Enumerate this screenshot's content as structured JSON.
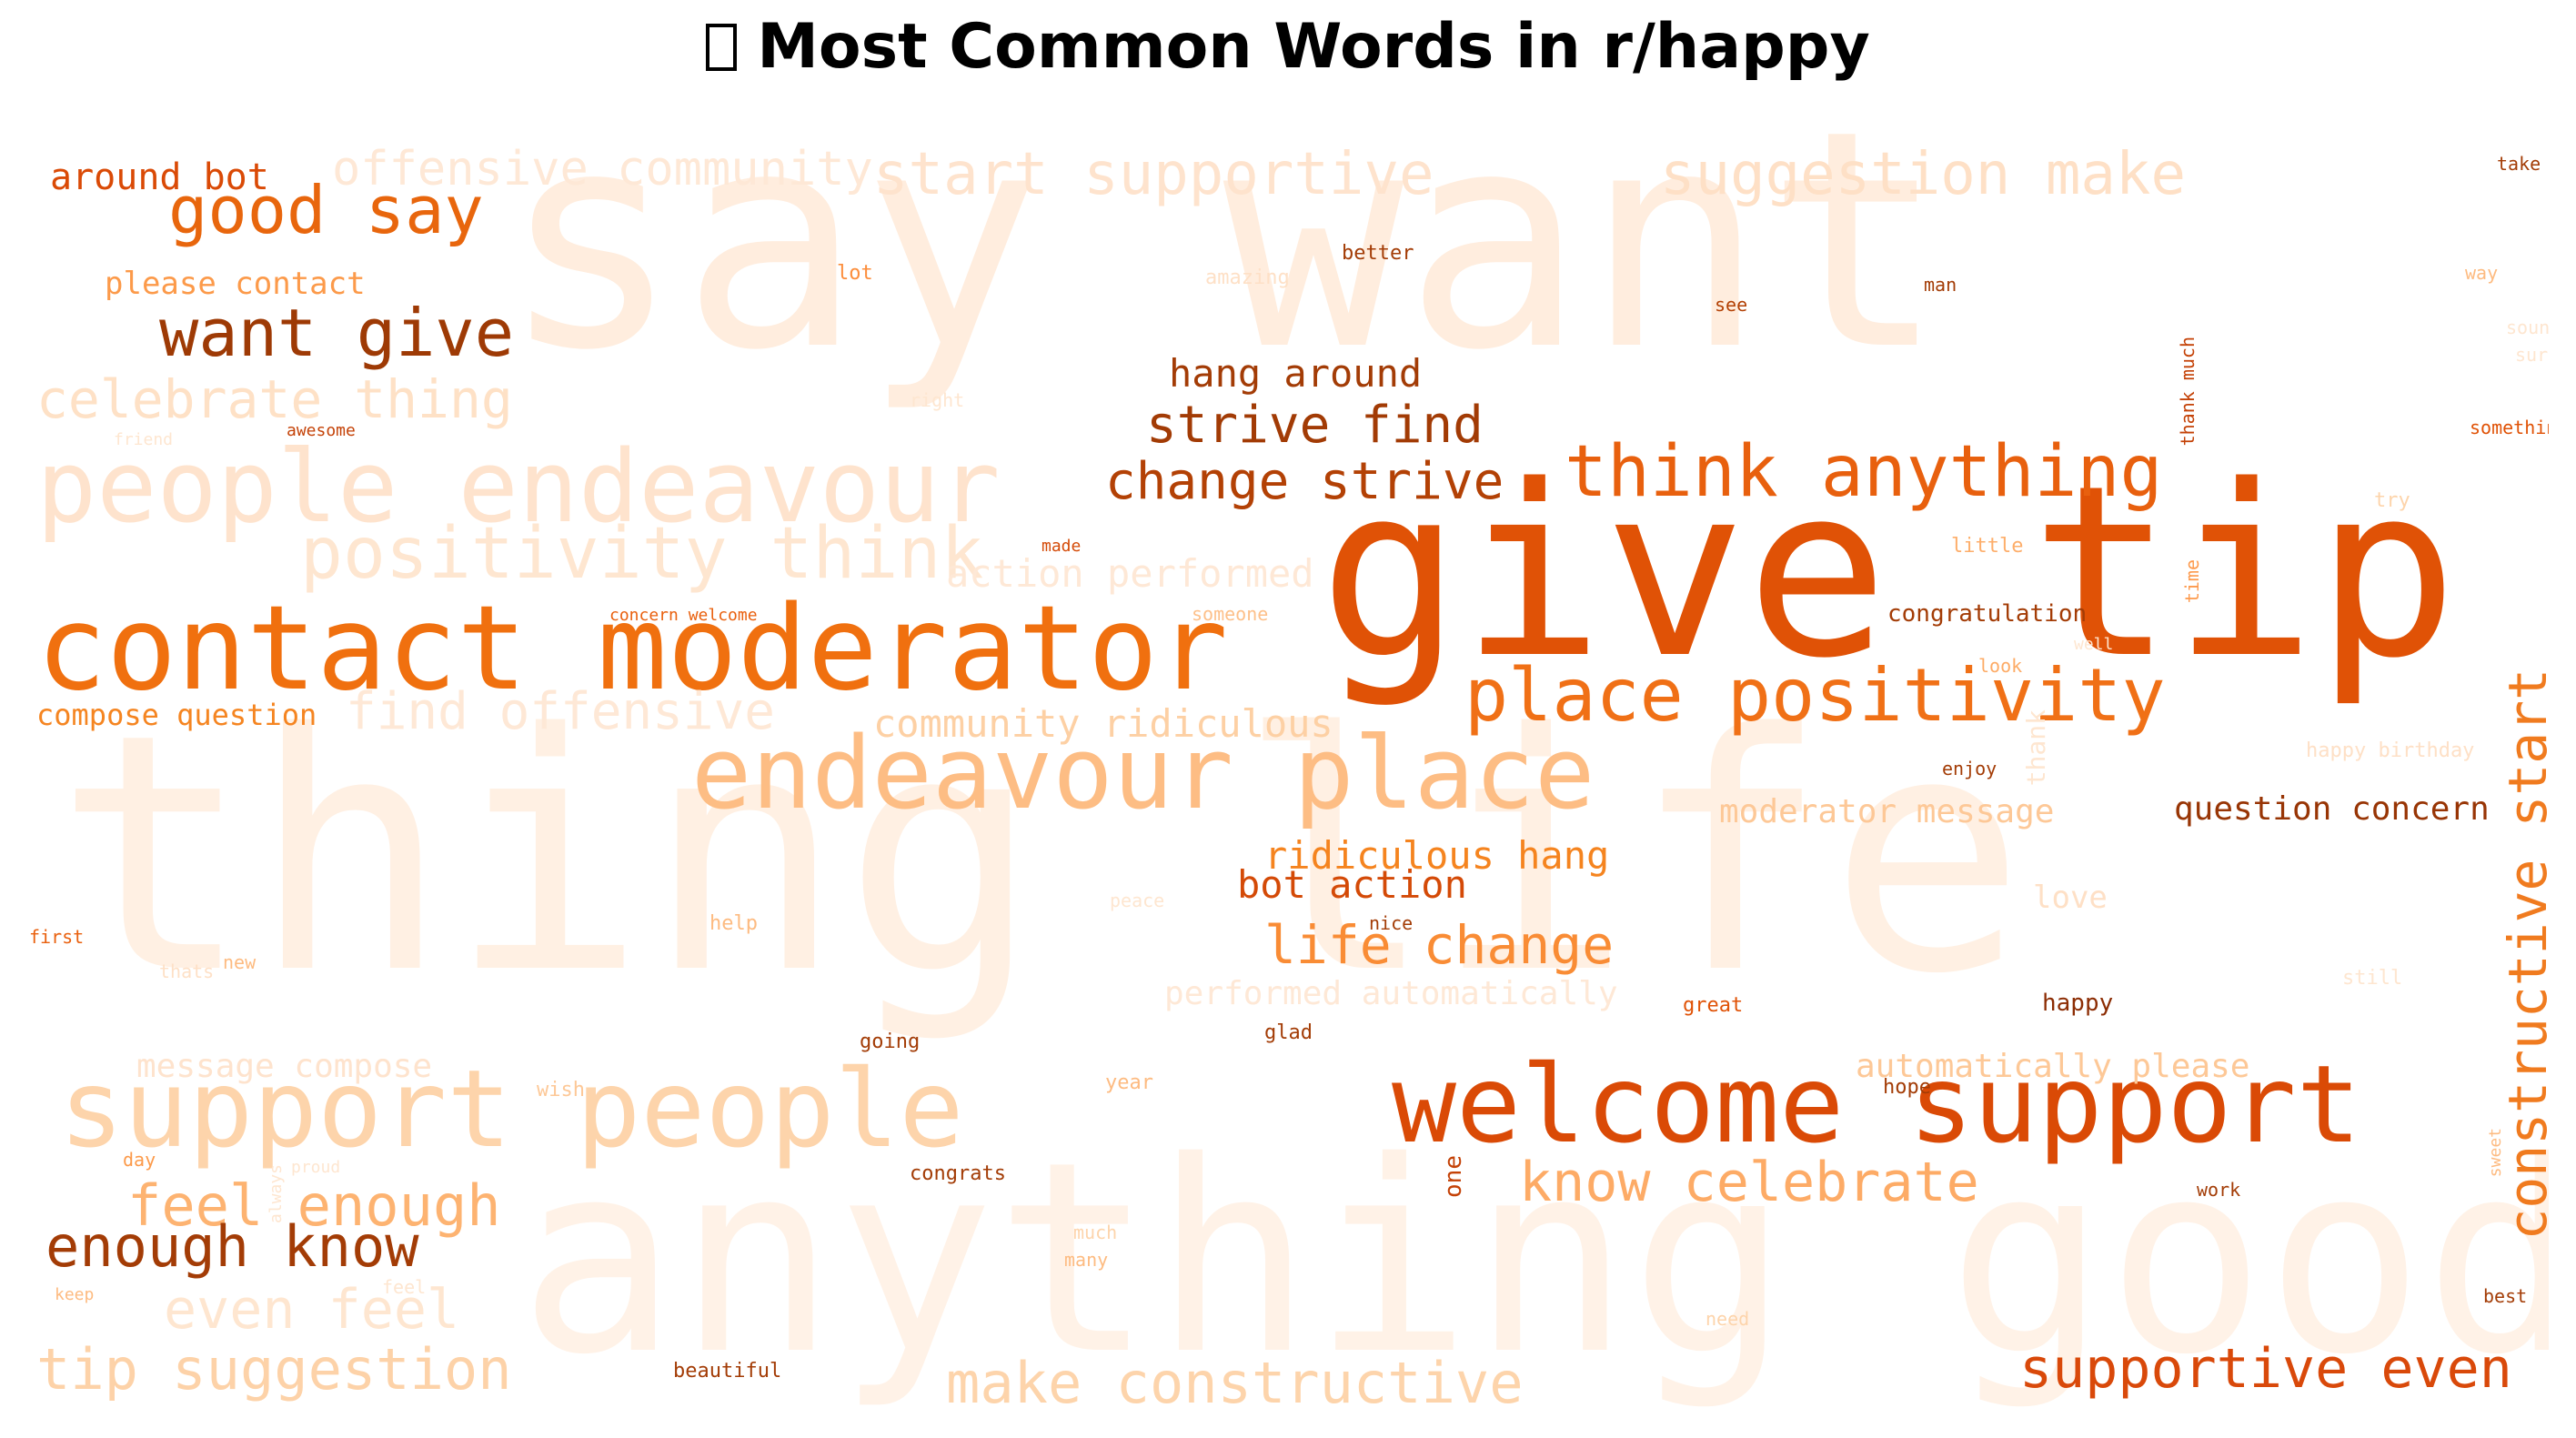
{
  "title": "Most Common Words in r/happy",
  "title_icon": "missing-glyph-icon",
  "colors": {
    "palette": "Oranges",
    "background": "#ffffff",
    "title": "#000000"
  },
  "words": [
    {
      "text": "thing life",
      "tone": "#fff0e3"
    },
    {
      "text": "say want",
      "tone": "#ffedde"
    },
    {
      "text": "anything good",
      "tone": "#fff2e7"
    },
    {
      "text": "give tip",
      "tone": "#e05206"
    },
    {
      "text": "contact moderator",
      "tone": "#f0700f"
    },
    {
      "text": "people endeavour",
      "tone": "#fee3cd"
    },
    {
      "text": "endeavour place",
      "tone": "#fdbd84"
    },
    {
      "text": "support people",
      "tone": "#fdd4ab"
    },
    {
      "text": "welcome support",
      "tone": "#da4a06"
    },
    {
      "text": "positivity think",
      "tone": "#fee6d0"
    },
    {
      "text": "place positivity",
      "tone": "#f07016"
    },
    {
      "text": "think anything",
      "tone": "#e8600e"
    },
    {
      "text": "good say",
      "tone": "#e8660d"
    },
    {
      "text": "want give",
      "tone": "#9e3a05"
    },
    {
      "text": "start supportive",
      "tone": "#fee3cd"
    },
    {
      "text": "suggestion make",
      "tone": "#fee0c6"
    },
    {
      "text": "offensive community",
      "tone": "#fee8d6"
    },
    {
      "text": "celebrate thing",
      "tone": "#fee1c6"
    },
    {
      "text": "find offensive",
      "tone": "#fee8d6"
    },
    {
      "text": "strive find",
      "tone": "#a23b05"
    },
    {
      "text": "change strive",
      "tone": "#b34105"
    },
    {
      "text": "hang around",
      "tone": "#a33c06"
    },
    {
      "text": "action performed",
      "tone": "#fee8d6"
    },
    {
      "text": "community ridiculous",
      "tone": "#fdd0a4"
    },
    {
      "text": "ridiculous hang",
      "tone": "#f5841f"
    },
    {
      "text": "bot action",
      "tone": "#d44a07"
    },
    {
      "text": "life change",
      "tone": "#f98c35"
    },
    {
      "text": "feel enough",
      "tone": "#fdb371"
    },
    {
      "text": "enough know",
      "tone": "#a33c06"
    },
    {
      "text": "even feel",
      "tone": "#fee6d0"
    },
    {
      "text": "tip suggestion",
      "tone": "#fdd2a8"
    },
    {
      "text": "make constructive",
      "tone": "#fdd4ab"
    },
    {
      "text": "know celebrate",
      "tone": "#fdab66"
    },
    {
      "text": "supportive even",
      "tone": "#d9490a"
    },
    {
      "text": "constructive start",
      "tone": "#f07b1f"
    },
    {
      "text": "moderator message",
      "tone": "#fdc897"
    },
    {
      "text": "question concern",
      "tone": "#983505"
    },
    {
      "text": "automatically please",
      "tone": "#fdc897"
    },
    {
      "text": "performed automatically",
      "tone": "#fee8d6"
    },
    {
      "text": "message compose",
      "tone": "#fee3cd"
    },
    {
      "text": "compose question",
      "tone": "#f58521"
    },
    {
      "text": "around bot",
      "tone": "#da4a06"
    },
    {
      "text": "please contact",
      "tone": "#fc9a4a"
    },
    {
      "text": "concern welcome",
      "tone": "#e9600e"
    },
    {
      "text": "congratulation",
      "tone": "#a33c06"
    },
    {
      "text": "happy birthday",
      "tone": "#fee0c6"
    },
    {
      "text": "thank much",
      "tone": "#c44207"
    },
    {
      "text": "better",
      "tone": "#a33c06"
    },
    {
      "text": "amazing",
      "tone": "#fee0c6"
    },
    {
      "text": "lot",
      "tone": "#fc8d3b"
    },
    {
      "text": "see",
      "tone": "#b34105"
    },
    {
      "text": "man",
      "tone": "#a33c06"
    },
    {
      "text": "take",
      "tone": "#a33c06"
    },
    {
      "text": "way",
      "tone": "#fdbb81"
    },
    {
      "text": "sound",
      "tone": "#fee6d0"
    },
    {
      "text": "sure",
      "tone": "#fee6d0"
    },
    {
      "text": "something",
      "tone": "#e05206"
    },
    {
      "text": "try",
      "tone": "#fdd4ab"
    },
    {
      "text": "little",
      "tone": "#fdae6b"
    },
    {
      "text": "time",
      "tone": "#fd9a4d"
    },
    {
      "text": "made",
      "tone": "#d44a07"
    },
    {
      "text": "someone",
      "tone": "#fdc08a"
    },
    {
      "text": "well",
      "tone": "#fee6d0"
    },
    {
      "text": "look",
      "tone": "#fdab66"
    },
    {
      "text": "thank",
      "tone": "#fee6d0"
    },
    {
      "text": "enjoy",
      "tone": "#a33c06"
    },
    {
      "text": "friend",
      "tone": "#fee6d0"
    },
    {
      "text": "awesome",
      "tone": "#c44207"
    },
    {
      "text": "right",
      "tone": "#fee6d0"
    },
    {
      "text": "first",
      "tone": "#e9600e"
    },
    {
      "text": "help",
      "tone": "#fdbb81"
    },
    {
      "text": "nice",
      "tone": "#a33c06"
    },
    {
      "text": "peace",
      "tone": "#fee6d0"
    },
    {
      "text": "love",
      "tone": "#fee0c6"
    },
    {
      "text": "great",
      "tone": "#e05206"
    },
    {
      "text": "happy",
      "tone": "#8c2d04"
    },
    {
      "text": "still",
      "tone": "#fee6d0"
    },
    {
      "text": "glad",
      "tone": "#a33c06"
    },
    {
      "text": "going",
      "tone": "#a33c06"
    },
    {
      "text": "wish",
      "tone": "#fdc897"
    },
    {
      "text": "year",
      "tone": "#fdbb81"
    },
    {
      "text": "hope",
      "tone": "#a33c06"
    },
    {
      "text": "day",
      "tone": "#fc9a4a"
    },
    {
      "text": "congrats",
      "tone": "#a33c06"
    },
    {
      "text": "one",
      "tone": "#c44207"
    },
    {
      "text": "work",
      "tone": "#a33c06"
    },
    {
      "text": "sweet",
      "tone": "#fdbb81"
    },
    {
      "text": "best",
      "tone": "#a33c06"
    },
    {
      "text": "much",
      "tone": "#fdd4ab"
    },
    {
      "text": "many",
      "tone": "#fdbb81"
    },
    {
      "text": "keep",
      "tone": "#fdbb81"
    },
    {
      "text": "need",
      "tone": "#fdd4ab"
    },
    {
      "text": "beautiful",
      "tone": "#a33c06"
    },
    {
      "text": "thats",
      "tone": "#fee0c6"
    },
    {
      "text": "new",
      "tone": "#fdbb81"
    },
    {
      "text": "always",
      "tone": "#fee6d0"
    },
    {
      "text": "proud",
      "tone": "#fee6d0"
    },
    {
      "text": "feel",
      "tone": "#fee6d0"
    }
  ]
}
